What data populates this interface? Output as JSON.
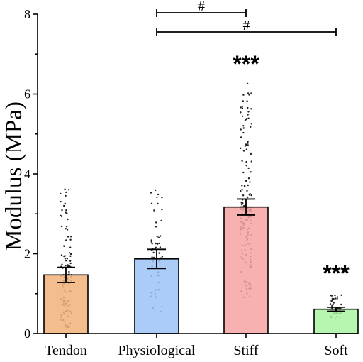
{
  "chart_data": {
    "type": "bar",
    "ylabel": "Modulus (MPa)",
    "xlabel": "",
    "ylim": [
      0,
      8
    ],
    "yticks": [
      "0",
      "2",
      "4",
      "6",
      "8"
    ],
    "categories": [
      "Tendon",
      "Physiological",
      "Stiff",
      "Soft"
    ],
    "values": [
      1.47,
      1.87,
      3.17,
      0.61
    ],
    "error": [
      0.19,
      0.24,
      0.2,
      0.05
    ],
    "colors": [
      "#F2B27A",
      "#9BC3F5",
      "#F7A3A3",
      "#A9F5A3"
    ],
    "annotations": [
      "",
      "",
      "***",
      "***"
    ],
    "comparisons": [
      {
        "from": "Physiological",
        "to": "Stiff",
        "label": "#"
      },
      {
        "from": "Physiological",
        "to": "Soft",
        "label": "#"
      }
    ],
    "grid": false
  }
}
